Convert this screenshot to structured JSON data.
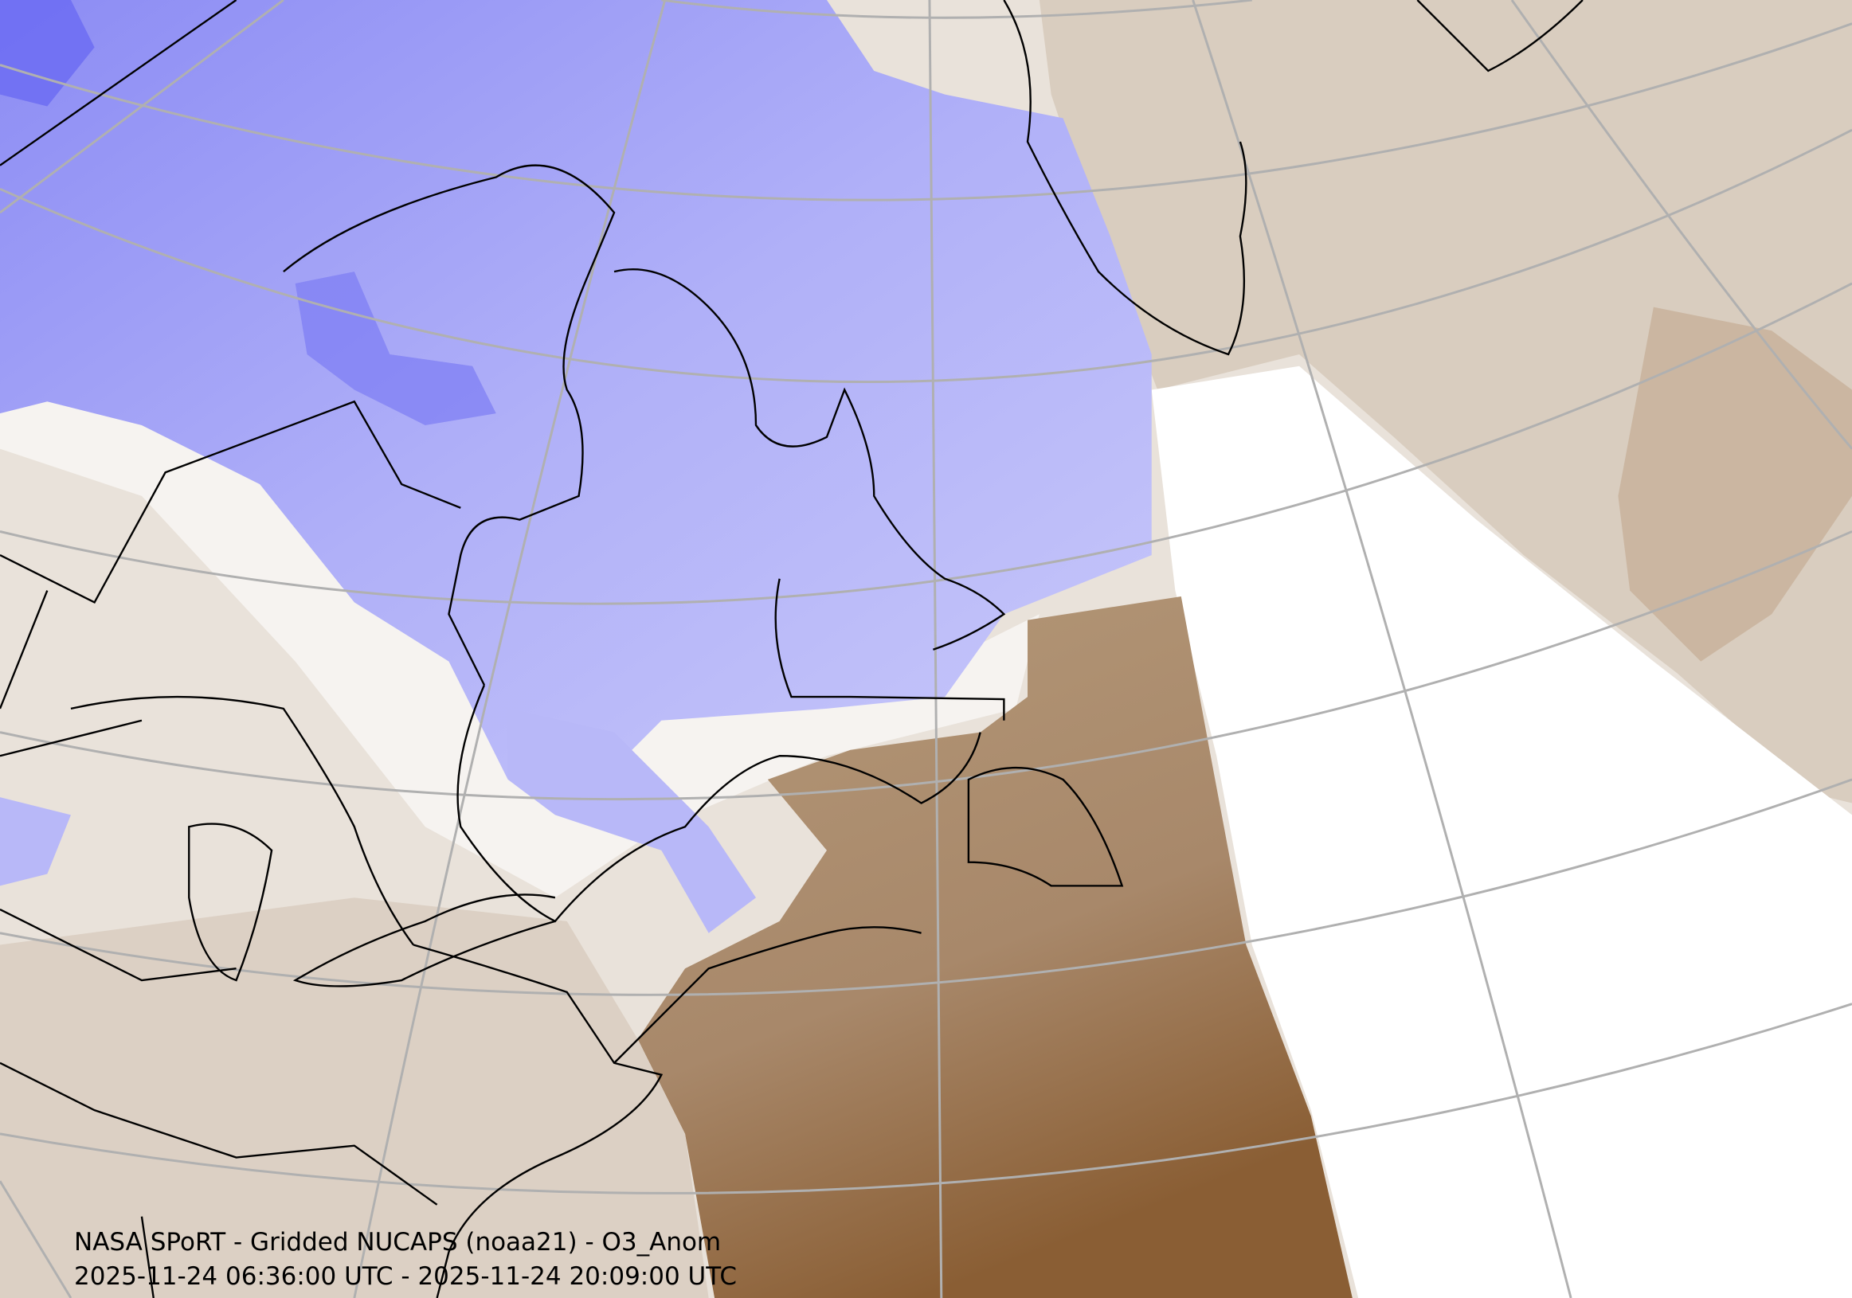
{
  "map": {
    "title": "NASA SPoRT - Gridded NUCAPS (noaa21) - O3_Anom",
    "time_range": "2025-11-24 06:36:00 UTC - 2025-11-24 20:09:00 UTC",
    "projection": "conic",
    "region": "northeastern North America and North Atlantic",
    "variable": "O3_Anom",
    "colors": {
      "negative_anomaly": "#b4b4f8",
      "strong_negative_anomaly": "#5a5af0",
      "neutral": "#e9e2da",
      "positive_anomaly": "#a88660",
      "strong_positive_anomaly": "#8a5e34",
      "no_data": "#ffffff",
      "graticule": "#b0b0b0",
      "coastline": "#000000"
    },
    "graticule": true,
    "coastlines": true
  }
}
